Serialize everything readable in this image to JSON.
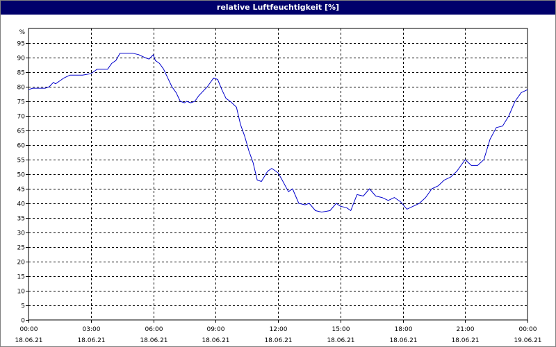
{
  "window": {
    "title": "relative Luftfeuchtigkeit [%]"
  },
  "chart_data": {
    "type": "line",
    "title": "relative Luftfeuchtigkeit [%]",
    "ylabel": "%",
    "xlabel": "",
    "ylim": [
      0,
      100
    ],
    "yticks": [
      0,
      5,
      10,
      15,
      20,
      25,
      30,
      35,
      40,
      45,
      50,
      55,
      60,
      65,
      70,
      75,
      80,
      85,
      90,
      95
    ],
    "xlim_hours": [
      0,
      24
    ],
    "xticks": [
      {
        "time": "00:00",
        "date": "18.06.21",
        "hour": 0
      },
      {
        "time": "03:00",
        "date": "18.06.21",
        "hour": 3
      },
      {
        "time": "06:00",
        "date": "18.06.21",
        "hour": 6
      },
      {
        "time": "09:00",
        "date": "18.06.21",
        "hour": 9
      },
      {
        "time": "12:00",
        "date": "18.06.21",
        "hour": 12
      },
      {
        "time": "15:00",
        "date": "18.06.21",
        "hour": 15
      },
      {
        "time": "18:00",
        "date": "18.06.21",
        "hour": 18
      },
      {
        "time": "21:00",
        "date": "18.06.21",
        "hour": 21
      },
      {
        "time": "00:00",
        "date": "19.06.21",
        "hour": 24
      }
    ],
    "grid": true,
    "legend": "none",
    "colors": {
      "line": "#0000cc",
      "title_bg": "#00006b",
      "grid": "#000000"
    },
    "series": [
      {
        "x": [
          0,
          0.2,
          0.5,
          0.8,
          1.0,
          1.2,
          1.3,
          1.5,
          1.7,
          2.0,
          2.3,
          2.6,
          3.0,
          3.3,
          3.6,
          3.8,
          4.0,
          4.2,
          4.4,
          4.6,
          4.8,
          5.0,
          5.3,
          5.6,
          5.8,
          6.0,
          6.1,
          6.3,
          6.5,
          6.7,
          6.9,
          7.1,
          7.3,
          7.5,
          7.6,
          7.8,
          8.0,
          8.2,
          8.4,
          8.6,
          8.9,
          9.1,
          9.3,
          9.5,
          9.7,
          10.0,
          10.2,
          10.4,
          10.6,
          10.8,
          11.0,
          11.2,
          11.5,
          11.7,
          12.0,
          12.2,
          12.5,
          12.7,
          13.0,
          13.3,
          13.5,
          13.8,
          14.1,
          14.5,
          14.8,
          15.0,
          15.3,
          15.5,
          15.8,
          16.1,
          16.4,
          16.7,
          17.0,
          17.3,
          17.6,
          17.9,
          18.2,
          18.5,
          18.8,
          19.1,
          19.4,
          19.7,
          20.0,
          20.3,
          20.6,
          21.0,
          21.3,
          21.6,
          21.9,
          22.2,
          22.5,
          22.8,
          23.1,
          23.4,
          23.7,
          24.0
        ],
        "y": [
          79,
          79.5,
          79.5,
          79.5,
          80,
          81.5,
          81,
          82,
          83,
          84,
          84,
          84,
          84.5,
          86,
          86,
          86,
          88,
          89,
          91.5,
          91.5,
          91.5,
          91.5,
          91,
          90,
          89.5,
          91,
          89,
          88,
          86,
          83,
          80,
          78,
          75,
          74.5,
          75,
          74.5,
          75,
          77,
          78.5,
          80,
          83,
          82.5,
          79,
          76,
          75,
          73,
          67,
          63,
          58,
          54,
          48,
          47.5,
          51,
          52,
          50.5,
          48,
          44,
          45,
          40,
          39.5,
          40,
          37.5,
          37,
          37.5,
          40,
          39,
          38.5,
          37.5,
          43,
          42.5,
          45,
          42.5,
          42,
          41,
          42,
          40.5,
          38,
          39,
          40,
          42,
          45,
          46,
          48,
          49,
          51,
          55,
          53,
          53,
          55,
          62,
          66,
          66.5,
          70,
          75,
          78,
          79
        ]
      }
    ]
  }
}
